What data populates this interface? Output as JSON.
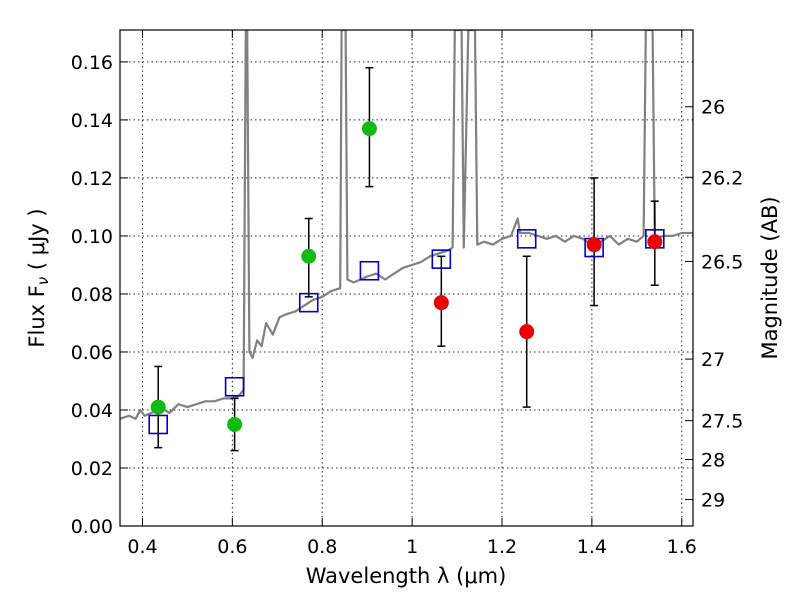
{
  "chart_data": {
    "type": "scatter",
    "xlabel": "Wavelength  λ (μm)",
    "ylabel": "Flux  F",
    "ylabel_sub": "ν",
    "ylabel_unit": " ( μJy )",
    "y2label": "Magnitude (AB)",
    "xlim": [
      0.35,
      1.625
    ],
    "ylim": [
      0.0,
      0.171
    ],
    "x_ticks": [
      "0.4",
      "0.6",
      "0.8",
      "1",
      "1.2",
      "1.4",
      "1.6"
    ],
    "y_ticks": [
      "0.00",
      "0.02",
      "0.04",
      "0.06",
      "0.08",
      "0.10",
      "0.12",
      "0.14",
      "0.16"
    ],
    "y2_ticks": [
      "26",
      "26.2",
      "26.5",
      "27",
      "27.5",
      "28",
      "29"
    ],
    "grid": true,
    "colors": {
      "spectrum": "#808080",
      "model": "#0000cc",
      "green": "#11bb11",
      "red": "#ee0000",
      "errorbar": "#000000"
    },
    "spectrum": [
      [
        0.35,
        0.037
      ],
      [
        0.37,
        0.038
      ],
      [
        0.385,
        0.037
      ],
      [
        0.395,
        0.04
      ],
      [
        0.405,
        0.038
      ],
      [
        0.42,
        0.039
      ],
      [
        0.44,
        0.041
      ],
      [
        0.46,
        0.039
      ],
      [
        0.48,
        0.042
      ],
      [
        0.5,
        0.041
      ],
      [
        0.52,
        0.042
      ],
      [
        0.54,
        0.043
      ],
      [
        0.56,
        0.043
      ],
      [
        0.58,
        0.044
      ],
      [
        0.6,
        0.044
      ],
      [
        0.615,
        0.045
      ],
      [
        0.625,
        0.047
      ],
      [
        0.63,
        0.171
      ],
      [
        0.633,
        0.171
      ],
      [
        0.638,
        0.06
      ],
      [
        0.645,
        0.058
      ],
      [
        0.655,
        0.064
      ],
      [
        0.665,
        0.062
      ],
      [
        0.675,
        0.07
      ],
      [
        0.69,
        0.066
      ],
      [
        0.705,
        0.072
      ],
      [
        0.72,
        0.073
      ],
      [
        0.74,
        0.074
      ],
      [
        0.76,
        0.076
      ],
      [
        0.78,
        0.078
      ],
      [
        0.8,
        0.079
      ],
      [
        0.82,
        0.081
      ],
      [
        0.84,
        0.082
      ],
      [
        0.843,
        0.171
      ],
      [
        0.852,
        0.171
      ],
      [
        0.856,
        0.085
      ],
      [
        0.87,
        0.084
      ],
      [
        0.885,
        0.085
      ],
      [
        0.9,
        0.086
      ],
      [
        0.92,
        0.087
      ],
      [
        0.94,
        0.085
      ],
      [
        0.96,
        0.087
      ],
      [
        0.98,
        0.089
      ],
      [
        1.0,
        0.09
      ],
      [
        1.02,
        0.091
      ],
      [
        1.04,
        0.093
      ],
      [
        1.06,
        0.094
      ],
      [
        1.08,
        0.095
      ],
      [
        1.09,
        0.096
      ],
      [
        1.095,
        0.171
      ],
      [
        1.11,
        0.171
      ],
      [
        1.115,
        0.096
      ],
      [
        1.125,
        0.171
      ],
      [
        1.14,
        0.171
      ],
      [
        1.145,
        0.097
      ],
      [
        1.16,
        0.098
      ],
      [
        1.18,
        0.097
      ],
      [
        1.2,
        0.099
      ],
      [
        1.22,
        0.1
      ],
      [
        1.235,
        0.106
      ],
      [
        1.24,
        0.101
      ],
      [
        1.26,
        0.101
      ],
      [
        1.28,
        0.1
      ],
      [
        1.3,
        0.099
      ],
      [
        1.32,
        0.1
      ],
      [
        1.34,
        0.098
      ],
      [
        1.36,
        0.1
      ],
      [
        1.38,
        0.099
      ],
      [
        1.4,
        0.097
      ],
      [
        1.42,
        0.098
      ],
      [
        1.44,
        0.1
      ],
      [
        1.46,
        0.097
      ],
      [
        1.48,
        0.099
      ],
      [
        1.5,
        0.098
      ],
      [
        1.515,
        0.1
      ],
      [
        1.52,
        0.171
      ],
      [
        1.535,
        0.171
      ],
      [
        1.54,
        0.099
      ],
      [
        1.56,
        0.1
      ],
      [
        1.58,
        0.1
      ],
      [
        1.6,
        0.101
      ],
      [
        1.625,
        0.101
      ]
    ],
    "model_points": [
      {
        "x": 0.435,
        "y": 0.035
      },
      {
        "x": 0.605,
        "y": 0.048
      },
      {
        "x": 0.77,
        "y": 0.077
      },
      {
        "x": 0.905,
        "y": 0.088
      },
      {
        "x": 1.065,
        "y": 0.092
      },
      {
        "x": 1.255,
        "y": 0.099
      },
      {
        "x": 1.405,
        "y": 0.096
      },
      {
        "x": 1.54,
        "y": 0.099
      }
    ],
    "green_points": [
      {
        "x": 0.435,
        "y": 0.041,
        "yerr_low": 0.027,
        "yerr_high": 0.055
      },
      {
        "x": 0.605,
        "y": 0.035,
        "yerr_low": 0.026,
        "yerr_high": 0.044
      },
      {
        "x": 0.77,
        "y": 0.093,
        "yerr_low": 0.079,
        "yerr_high": 0.106
      },
      {
        "x": 0.905,
        "y": 0.137,
        "yerr_low": 0.117,
        "yerr_high": 0.158
      }
    ],
    "red_points": [
      {
        "x": 1.065,
        "y": 0.077,
        "yerr_low": 0.062,
        "yerr_high": 0.093
      },
      {
        "x": 1.255,
        "y": 0.067,
        "yerr_low": 0.041,
        "yerr_high": 0.093
      },
      {
        "x": 1.405,
        "y": 0.097,
        "yerr_low": 0.076,
        "yerr_high": 0.12
      },
      {
        "x": 1.54,
        "y": 0.098,
        "yerr_low": 0.083,
        "yerr_high": 0.112
      }
    ]
  }
}
